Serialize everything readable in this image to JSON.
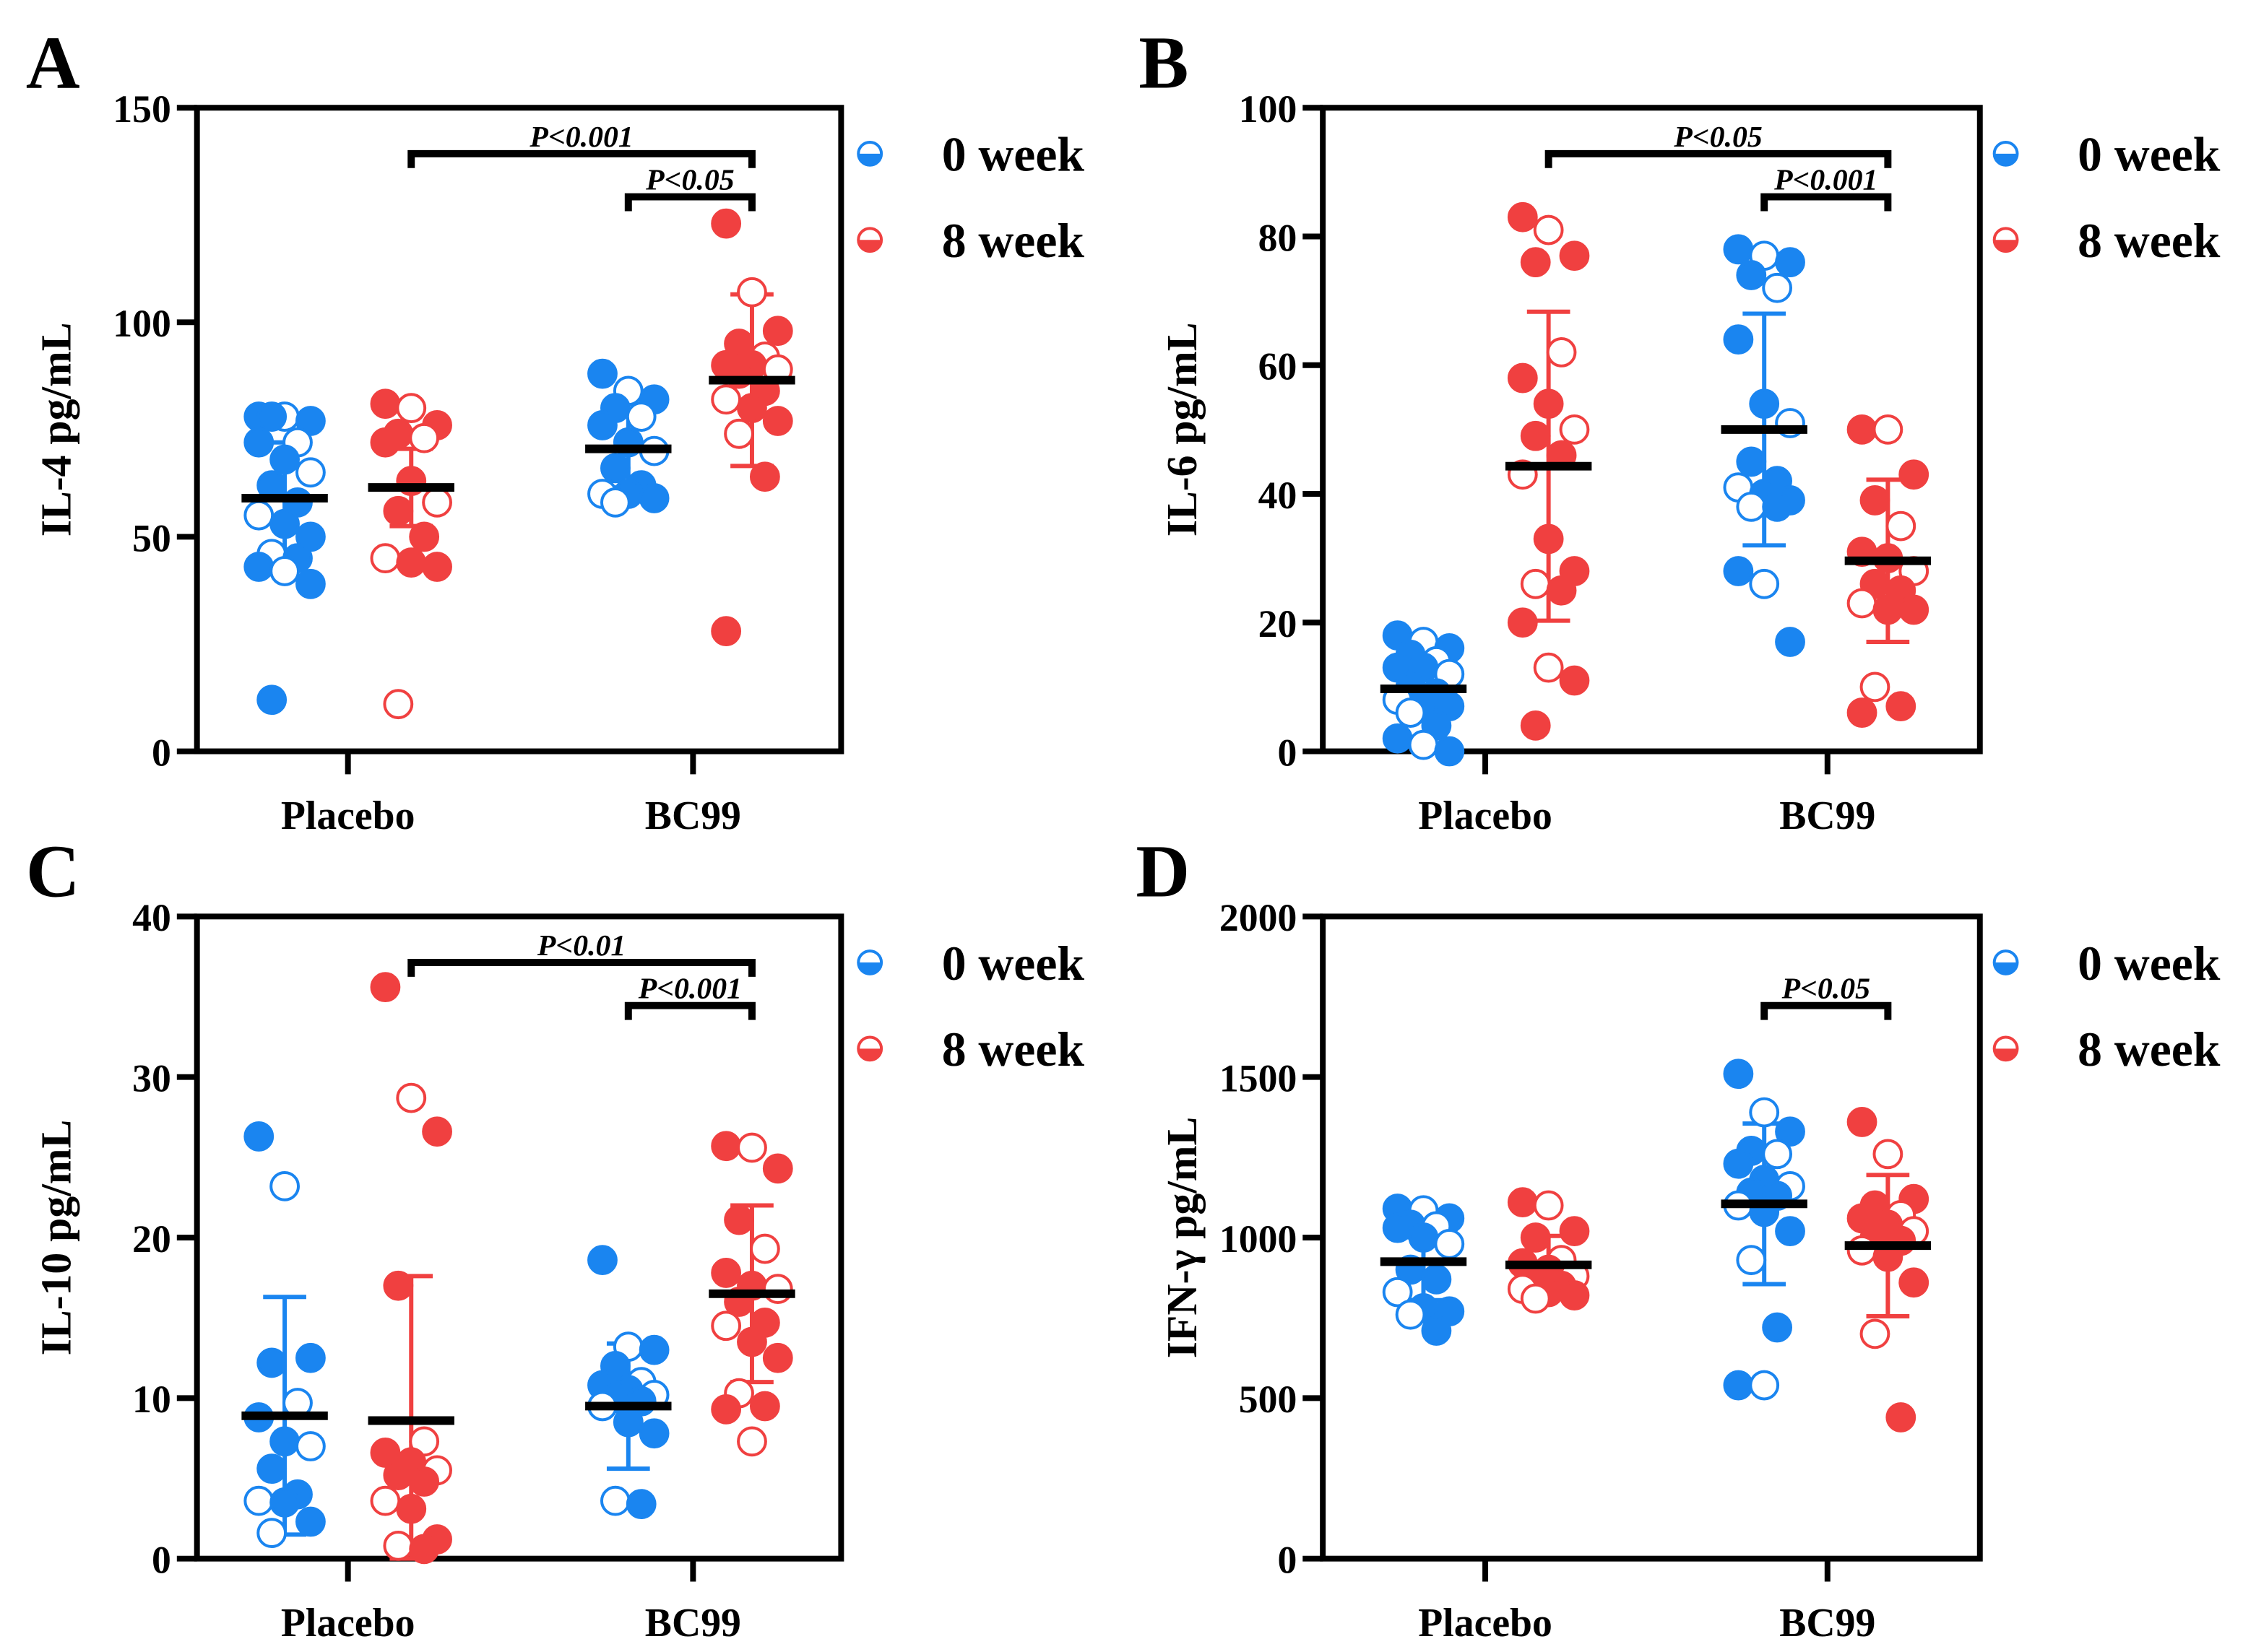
{
  "colors": {
    "week0": "#1a85f0",
    "week8": "#f04040",
    "axis": "#000000"
  },
  "chart_data": [
    {
      "type": "scatter",
      "panel": "A",
      "ylabel": "IL-4  pg/mL",
      "ylim": [
        0,
        150
      ],
      "yticks": [
        0,
        50,
        100,
        150
      ],
      "categories": [
        "Placebo",
        "BC99"
      ],
      "legend": [
        "0 week",
        "8 week"
      ],
      "legend_position": "right",
      "groups": [
        {
          "category": "Placebo",
          "series": "0 week",
          "mean": 59,
          "sd": 13,
          "values": [
            78,
            78,
            77,
            78,
            72,
            72,
            68,
            65,
            62,
            58,
            55,
            53,
            50,
            46,
            45,
            43,
            42,
            39,
            12
          ]
        },
        {
          "category": "Placebo",
          "series": "8 week",
          "mean": 61.5,
          "sd": 9,
          "values": [
            81,
            80,
            76,
            74,
            73,
            72,
            63,
            58,
            56,
            50,
            45,
            44,
            43,
            11
          ]
        },
        {
          "category": "BC99",
          "series": "0 week",
          "mean": 70.5,
          "sd": 9,
          "values": [
            88,
            84,
            82,
            80,
            78,
            76,
            72,
            70,
            66,
            62,
            60,
            60,
            59,
            58
          ]
        },
        {
          "category": "BC99",
          "series": "8 week",
          "mean": 86.5,
          "sd": 20,
          "values": [
            123,
            107,
            98,
            95,
            92,
            90,
            90,
            89,
            88,
            84,
            82,
            80,
            77,
            74,
            64,
            28
          ]
        }
      ],
      "comparisons": [
        {
          "from": 1,
          "to": 3,
          "tier": 1,
          "label": "P<0.001"
        },
        {
          "from": 2,
          "to": 3,
          "tier": 2,
          "label": "P<0.05"
        }
      ]
    },
    {
      "type": "scatter",
      "panel": "B",
      "ylabel": "IL-6 pg/mL",
      "ylim": [
        0,
        100
      ],
      "yticks": [
        0,
        20,
        40,
        60,
        80,
        100
      ],
      "categories": [
        "Placebo",
        "BC99"
      ],
      "legend": [
        "0 week",
        "8 week"
      ],
      "legend_position": "right",
      "groups": [
        {
          "category": "Placebo",
          "series": "0 week",
          "mean": 9.7,
          "sd": 5,
          "values": [
            18,
            17,
            16,
            15,
            14,
            13,
            13,
            12,
            10,
            9,
            8,
            7,
            7,
            6,
            4,
            2,
            1,
            0
          ]
        },
        {
          "category": "Placebo",
          "series": "8 week",
          "mean": 44.3,
          "sd": 24,
          "values": [
            83,
            81,
            77,
            76,
            62,
            58,
            54,
            50,
            49,
            46,
            43,
            33,
            28,
            26,
            25,
            20,
            13,
            11,
            4
          ]
        },
        {
          "category": "BC99",
          "series": "0 week",
          "mean": 50,
          "sd": 18,
          "values": [
            78,
            77,
            76,
            74,
            72,
            64,
            54,
            51,
            45,
            42,
            41,
            40,
            39,
            38,
            38,
            28,
            26,
            17
          ]
        },
        {
          "category": "BC99",
          "series": "8 week",
          "mean": 29.6,
          "sd": 12.6,
          "values": [
            50,
            50,
            43,
            39,
            35,
            31,
            30,
            28,
            26,
            25,
            23,
            22,
            22,
            10,
            7,
            6
          ]
        }
      ],
      "comparisons": [
        {
          "from": 1,
          "to": 3,
          "tier": 1,
          "label": "P<0.05"
        },
        {
          "from": 2,
          "to": 3,
          "tier": 2,
          "label": "P<0.001"
        }
      ]
    },
    {
      "type": "scatter",
      "panel": "C",
      "ylabel": "IL-10 pg/mL",
      "ylim": [
        0,
        40
      ],
      "yticks": [
        0,
        10,
        20,
        30,
        40
      ],
      "categories": [
        "Placebo",
        "BC99"
      ],
      "legend": [
        "0 week",
        "8 week"
      ],
      "legend_position": "right",
      "groups": [
        {
          "category": "Placebo",
          "series": "0 week",
          "mean": 8.9,
          "sd": 7.4,
          "values": [
            26.3,
            23.2,
            12.5,
            12.2,
            9.7,
            8.8,
            7.3,
            7.0,
            5.6,
            4.0,
            3.6,
            3.5,
            2.3,
            1.6
          ]
        },
        {
          "category": "Placebo",
          "series": "8 week",
          "mean": 8.6,
          "sd": 9,
          "values": [
            35.6,
            28.7,
            26.6,
            17,
            7.3,
            6.6,
            6,
            5.5,
            5.2,
            4.8,
            3.6,
            3.1,
            1.2,
            0.8,
            0.6
          ]
        },
        {
          "category": "BC99",
          "series": "0 week",
          "mean": 9.5,
          "sd": 3.9,
          "values": [
            18.6,
            13.2,
            13,
            12,
            11,
            10.8,
            10.5,
            10.2,
            10,
            9.8,
            9.5,
            8.5,
            7.8,
            3.6,
            3.4
          ]
        },
        {
          "category": "BC99",
          "series": "8 week",
          "mean": 16.5,
          "sd": 5.5,
          "values": [
            25.7,
            25.6,
            24.3,
            21.1,
            19.3,
            17.8,
            17,
            16.8,
            16,
            14.7,
            14.5,
            13.5,
            12.5,
            10.3,
            9.5,
            9.3,
            7.3
          ]
        }
      ],
      "comparisons": [
        {
          "from": 1,
          "to": 3,
          "tier": 1,
          "label": "P<0.01"
        },
        {
          "from": 2,
          "to": 3,
          "tier": 2,
          "label": "P<0.001"
        }
      ]
    },
    {
      "type": "scatter",
      "panel": "D",
      "ylabel": "IFN-γ  pg/mL",
      "ylim": [
        0,
        2000
      ],
      "yticks": [
        0,
        500,
        1000,
        1500,
        2000
      ],
      "categories": [
        "Placebo",
        "BC99"
      ],
      "legend": [
        "0 week",
        "8 week"
      ],
      "legend_position": "right",
      "groups": [
        {
          "category": "Placebo",
          "series": "0 week",
          "mean": 925,
          "sd": 120,
          "values": [
            1090,
            1085,
            1060,
            1040,
            1035,
            1030,
            1000,
            980,
            900,
            870,
            830,
            780,
            770,
            760,
            710
          ]
        },
        {
          "category": "Placebo",
          "series": "8 week",
          "mean": 915,
          "sd": 90,
          "values": [
            1110,
            1100,
            1020,
            1000,
            930,
            920,
            900,
            880,
            860,
            850,
            840,
            830,
            820,
            810
          ]
        },
        {
          "category": "BC99",
          "series": "0 week",
          "mean": 1105,
          "sd": 250,
          "values": [
            1510,
            1390,
            1330,
            1270,
            1260,
            1230,
            1180,
            1160,
            1140,
            1130,
            1100,
            1080,
            1020,
            930,
            720,
            540,
            540
          ]
        },
        {
          "category": "BC99",
          "series": "8 week",
          "mean": 975,
          "sd": 220,
          "values": [
            1360,
            1260,
            1120,
            1100,
            1070,
            1060,
            1040,
            1020,
            1000,
            990,
            960,
            940,
            860,
            700,
            440
          ]
        }
      ],
      "comparisons": [
        {
          "from": 2,
          "to": 3,
          "tier": 2,
          "label": "P<0.05"
        }
      ]
    }
  ]
}
